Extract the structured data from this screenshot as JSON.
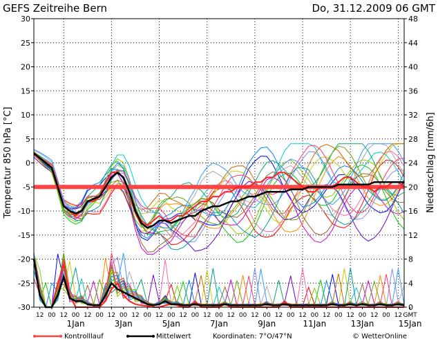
{
  "chart_data": {
    "type": "line",
    "title": "GEFS  Zeitreihe  Bern",
    "run_label": "Do, 31.12.2009  06  GMT",
    "ylabel_left": "Temperatur  850  hPa  [°C]",
    "ylabel_right": "Niederschlag  [mm/6h]",
    "ylim_left": [
      -30,
      30
    ],
    "ylim_right": [
      0,
      48
    ],
    "yticks_left": [
      30,
      25,
      20,
      15,
      10,
      5,
      0,
      -5,
      -10,
      -15,
      -20,
      -25,
      -30
    ],
    "yticks_right": [
      48,
      44,
      40,
      36,
      32,
      28,
      24,
      20,
      16,
      12,
      8,
      4,
      0
    ],
    "x_hours_from_run": [
      0,
      372
    ],
    "x_tick_labels": [
      "12",
      "00",
      "12",
      "00",
      "12",
      "00",
      "12",
      "00",
      "12",
      "00",
      "12",
      "00",
      "12",
      "00",
      "12",
      "00",
      "12",
      "00",
      "12",
      "00",
      "12",
      "00",
      "12",
      "00",
      "12",
      "00",
      "12",
      "00",
      "12",
      "00",
      "12",
      "GMT"
    ],
    "date_labels": [
      {
        "label": "1Jan",
        "hour": 42
      },
      {
        "label": "3Jan",
        "hour": 90
      },
      {
        "label": "5Jan",
        "hour": 138
      },
      {
        "label": "7Jan",
        "hour": 186
      },
      {
        "label": "9Jan",
        "hour": 234
      },
      {
        "label": "11Jan",
        "hour": 282
      },
      {
        "label": "13Jan",
        "hour": 330
      },
      {
        "label": "15Jan",
        "hour": 378
      }
    ],
    "grid": true,
    "reference_line": {
      "y": -5,
      "color": "#ff4444"
    },
    "control_run_temp": [
      2,
      1,
      0,
      -1,
      -5,
      -9,
      -10,
      -11,
      -10,
      -8,
      -8,
      -7,
      -4,
      -2,
      -2,
      -3,
      -6,
      -10,
      -12,
      -13,
      -12,
      -11,
      -12,
      -12,
      -11,
      -11,
      -10,
      -9,
      -8,
      -8,
      -7,
      -7,
      -6,
      -6,
      -5,
      -5,
      -5,
      -4,
      -4,
      -3,
      -3,
      -2,
      -2,
      -3,
      -4,
      -5,
      -6,
      -6,
      -5,
      -5,
      -5,
      -4,
      -3,
      -3,
      -4,
      -5,
      -5,
      -6,
      -5,
      -5,
      -4,
      -4,
      -5
    ],
    "mean_temp": [
      2,
      1,
      0,
      -1,
      -5,
      -9,
      -10,
      -10.5,
      -10,
      -8,
      -7.5,
      -7,
      -5,
      -3,
      -2,
      -3,
      -6,
      -10,
      -12.5,
      -13.5,
      -13,
      -12,
      -12,
      -12.5,
      -12,
      -11.5,
      -11,
      -11,
      -10,
      -9.5,
      -9,
      -9,
      -8.5,
      -8,
      -8,
      -7.5,
      -7,
      -7,
      -6.5,
      -6,
      -6,
      -6,
      -6,
      -5.5,
      -5.5,
      -5.5,
      -5,
      -5,
      -5,
      -5,
      -5,
      -4.5,
      -4.5,
      -4.5,
      -4.5,
      -4.5,
      -4.5,
      -4,
      -4,
      -4,
      -4,
      -4,
      -4
    ],
    "control_run_precip": [
      8,
      2,
      0,
      0,
      4,
      7,
      2,
      0,
      0,
      0,
      0,
      0,
      1,
      3,
      4,
      2,
      1,
      0.5,
      0.3,
      0.2,
      0,
      0,
      0.3,
      0.5,
      0.3,
      0,
      0,
      1,
      0,
      0,
      0,
      0,
      0.5,
      0,
      0,
      0,
      0,
      0,
      0,
      0,
      0,
      0,
      1,
      0,
      0,
      0,
      0,
      0,
      0,
      0,
      0,
      0,
      0,
      0,
      0,
      0,
      0,
      0,
      0,
      0,
      0,
      0,
      0
    ],
    "mean_precip": [
      8,
      2,
      0,
      0,
      2,
      5,
      1.5,
      1,
      1,
      0.5,
      0.3,
      0.3,
      2,
      4,
      3,
      2.5,
      2,
      1.5,
      1,
      0.5,
      0.3,
      0.5,
      1,
      0.5,
      0.5,
      0.3,
      0.3,
      0.5,
      0.3,
      0.3,
      0.3,
      0.3,
      0.5,
      0.3,
      0.3,
      0.3,
      0.3,
      0.3,
      0.3,
      0.5,
      0.3,
      0.3,
      0.5,
      0.3,
      0.3,
      0.3,
      0.3,
      0.3,
      0.3,
      0.3,
      0.5,
      0.3,
      0.3,
      0.5,
      0.3,
      0.5,
      0.3,
      0.3,
      0.5,
      0.3,
      0.3,
      0.5,
      0.3
    ],
    "member_colors": [
      "#ff0000",
      "#00cc00",
      "#0000ff",
      "#cccc00",
      "#00cccc",
      "#cc00cc",
      "#ff8800",
      "#8888ff",
      "#aaaaaa",
      "#00aa66",
      "#6600cc",
      "#ff66aa",
      "#88cc00",
      "#0088ff",
      "#cc6600",
      "#009999",
      "#996633",
      "#66aa00",
      "#ff3366",
      "#3399ff"
    ],
    "legend": [
      {
        "label": "Kontrolllauf",
        "color": "#ff4444"
      },
      {
        "label": "Mittelwert",
        "color": "#000000"
      }
    ],
    "coordinates_label": "Koordinaten:  7°O/47°N",
    "credit": "© WetterOnline"
  }
}
